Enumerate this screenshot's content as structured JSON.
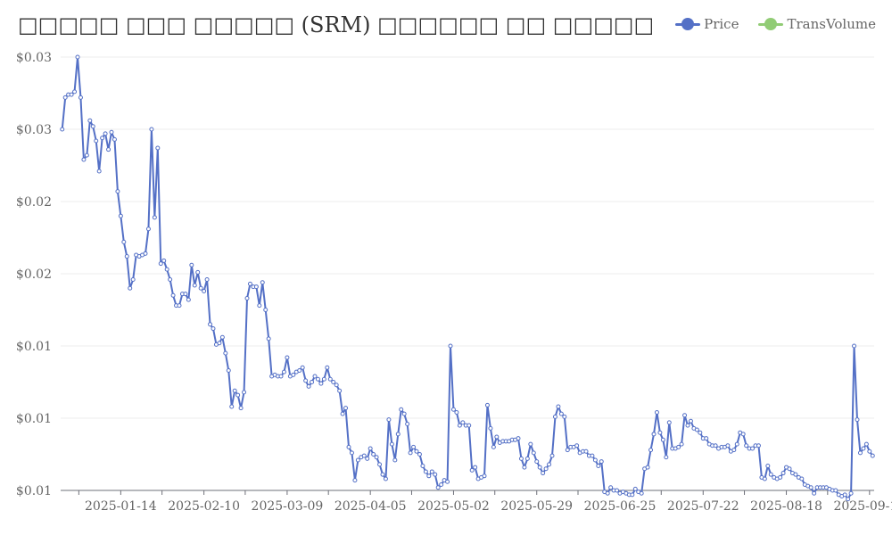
{
  "chart_data": {
    "type": "line",
    "title": "□□□□□ □□□ □□□□□ (SRM) □□□□□□ □□ □□□□□",
    "xlabel": "",
    "ylabel": "",
    "ylim": [
      0.005,
      0.035
    ],
    "y_ticks": [
      "$0.01",
      "$0.01",
      "$0.01",
      "$0.02",
      "$0.02",
      "$0.03",
      "$0.03"
    ],
    "x_ticks": [
      "2025-01-14",
      "2025-02-10",
      "2025-03-09",
      "2025-04-05",
      "2025-05-02",
      "2025-05-29",
      "2025-06-25",
      "2025-07-22",
      "2025-08-18",
      "2025-09-14"
    ],
    "x_start": "2024-12-26",
    "grid": true,
    "legend_position": "top-right",
    "colors": {
      "price": "#5470c6",
      "transvolume": "#91cc75"
    },
    "series": [
      {
        "name": "Price",
        "values": [
          0.03,
          0.0322,
          0.0324,
          0.0324,
          0.0326,
          0.035,
          0.0322,
          0.0279,
          0.0282,
          0.0306,
          0.0302,
          0.0292,
          0.0271,
          0.0294,
          0.0297,
          0.0286,
          0.0298,
          0.0293,
          0.0257,
          0.024,
          0.0222,
          0.0212,
          0.019,
          0.0196,
          0.0213,
          0.0212,
          0.0213,
          0.0214,
          0.0231,
          0.03,
          0.0239,
          0.0287,
          0.0207,
          0.0209,
          0.0203,
          0.0196,
          0.0185,
          0.0178,
          0.0178,
          0.0186,
          0.0186,
          0.0182,
          0.0206,
          0.0192,
          0.0201,
          0.019,
          0.0188,
          0.0196,
          0.0165,
          0.0162,
          0.0151,
          0.0152,
          0.0156,
          0.0145,
          0.0133,
          0.0108,
          0.0119,
          0.0116,
          0.0107,
          0.0118,
          0.0183,
          0.0193,
          0.0191,
          0.0191,
          0.0178,
          0.0194,
          0.0175,
          0.0155,
          0.0129,
          0.013,
          0.0129,
          0.0129,
          0.0132,
          0.0142,
          0.0129,
          0.013,
          0.0132,
          0.0133,
          0.0135,
          0.0126,
          0.0122,
          0.0125,
          0.0129,
          0.0127,
          0.0124,
          0.0127,
          0.0135,
          0.0127,
          0.0125,
          0.0123,
          0.0119,
          0.0103,
          0.0107,
          0.008,
          0.0076,
          0.0057,
          0.0071,
          0.0073,
          0.0074,
          0.0072,
          0.0079,
          0.0075,
          0.0073,
          0.0068,
          0.0061,
          0.0058,
          0.0099,
          0.0082,
          0.0071,
          0.0089,
          0.0106,
          0.0103,
          0.0096,
          0.0076,
          0.008,
          0.0077,
          0.0075,
          0.0067,
          0.0063,
          0.006,
          0.0063,
          0.0061,
          0.0052,
          0.0054,
          0.0057,
          0.0056,
          0.015,
          0.0106,
          0.0104,
          0.0095,
          0.0097,
          0.0095,
          0.0095,
          0.0064,
          0.0066,
          0.0058,
          0.0059,
          0.006,
          0.0109,
          0.0093,
          0.008,
          0.0087,
          0.0083,
          0.0084,
          0.0084,
          0.0084,
          0.0085,
          0.0085,
          0.0086,
          0.0072,
          0.0066,
          0.0072,
          0.0082,
          0.0076,
          0.007,
          0.0066,
          0.0062,
          0.0065,
          0.0068,
          0.0074,
          0.0101,
          0.0108,
          0.0103,
          0.0101,
          0.0078,
          0.008,
          0.008,
          0.0081,
          0.0076,
          0.0077,
          0.0077,
          0.0074,
          0.0074,
          0.0071,
          0.0067,
          0.007,
          0.0049,
          0.0048,
          0.0052,
          0.005,
          0.005,
          0.0048,
          0.0049,
          0.0048,
          0.0047,
          0.0047,
          0.0051,
          0.0049,
          0.0048,
          0.0065,
          0.0066,
          0.0078,
          0.0089,
          0.0104,
          0.009,
          0.0085,
          0.0073,
          0.0097,
          0.0079,
          0.0079,
          0.008,
          0.0082,
          0.0102,
          0.0095,
          0.0098,
          0.0093,
          0.0092,
          0.009,
          0.0086,
          0.0086,
          0.0082,
          0.0081,
          0.0081,
          0.0079,
          0.008,
          0.008,
          0.0081,
          0.0077,
          0.0078,
          0.0082,
          0.009,
          0.0089,
          0.0081,
          0.0079,
          0.0079,
          0.0081,
          0.0081,
          0.0059,
          0.0058,
          0.0067,
          0.0061,
          0.0059,
          0.0058,
          0.0059,
          0.0062,
          0.0066,
          0.0065,
          0.0062,
          0.0061,
          0.0059,
          0.0058,
          0.0054,
          0.0053,
          0.0052,
          0.0048,
          0.0052,
          0.0052,
          0.0052,
          0.0052,
          0.0051,
          0.005,
          0.005,
          0.0047,
          0.0046,
          0.0047,
          0.0044,
          0.0048,
          0.015,
          0.0099,
          0.0076,
          0.0079,
          0.0082,
          0.0077,
          0.0074
        ]
      },
      {
        "name": "TransVolume",
        "values": []
      }
    ]
  }
}
